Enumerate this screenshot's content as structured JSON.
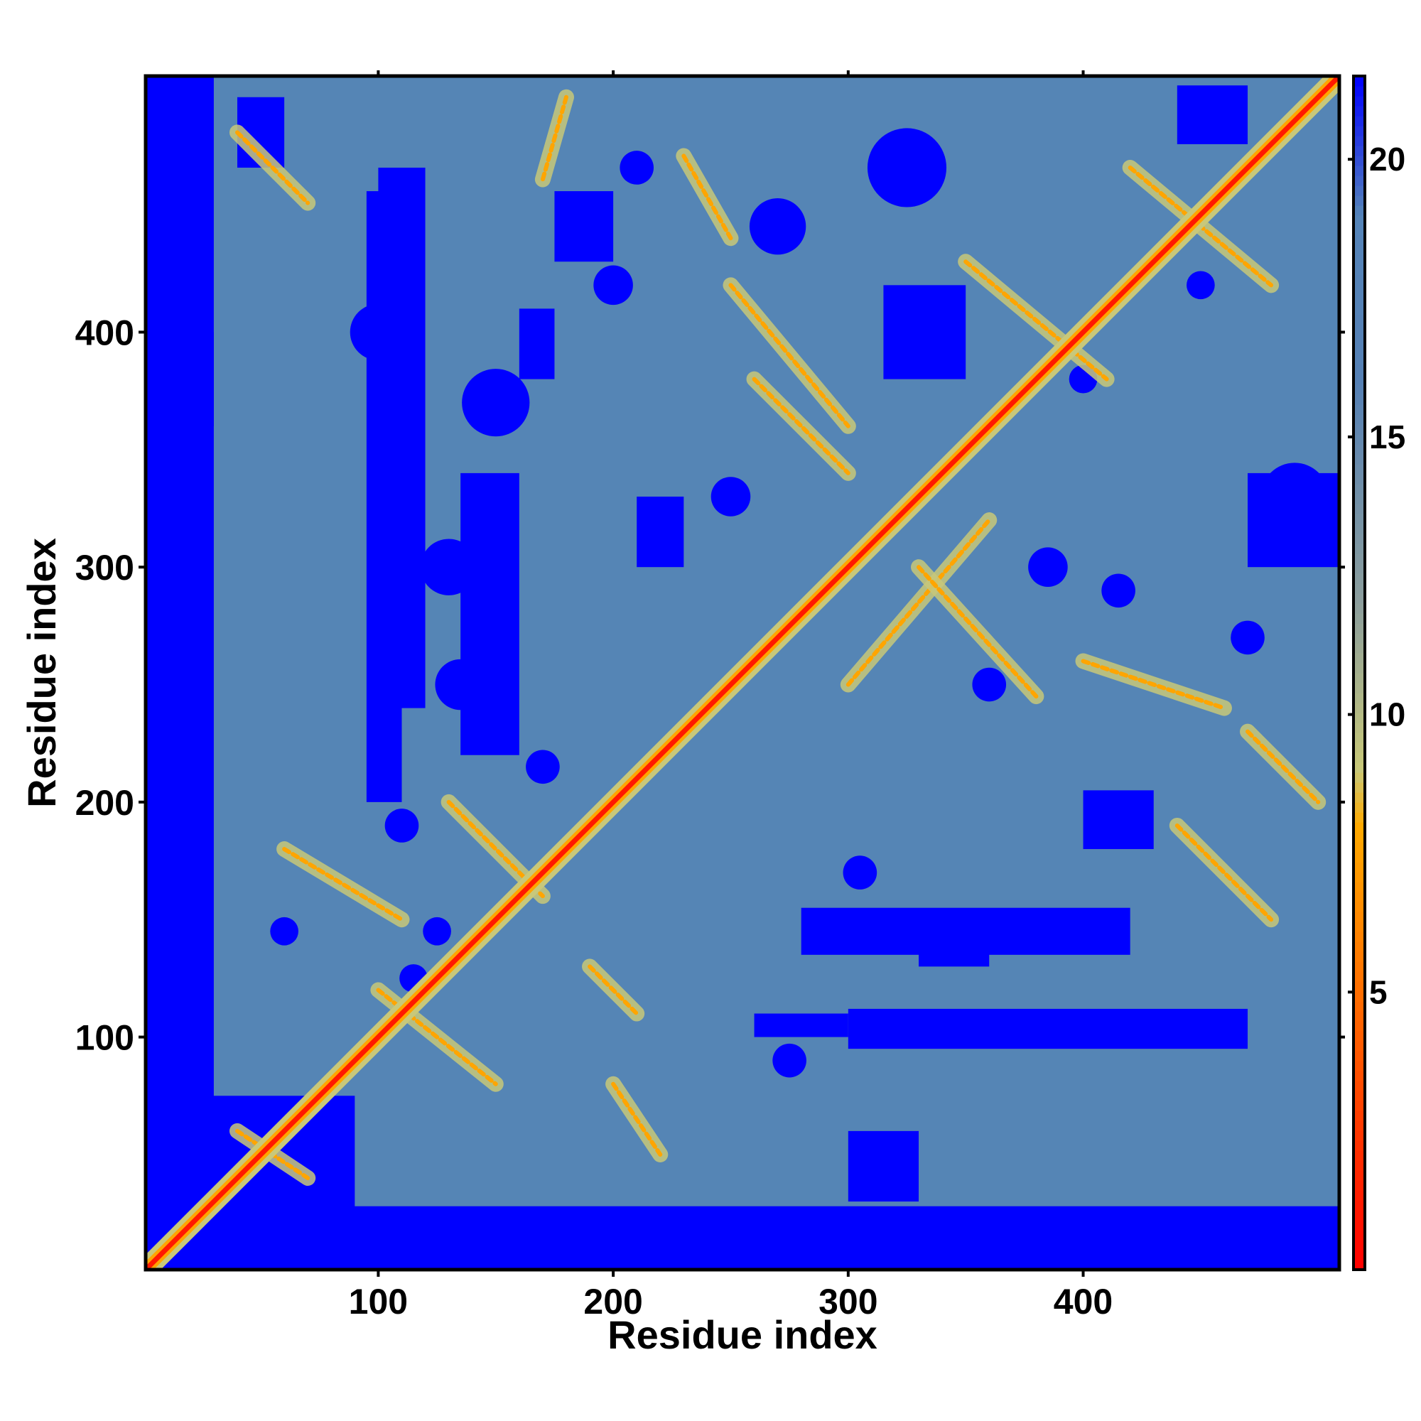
{
  "chart_data": {
    "type": "heatmap",
    "title": "",
    "xlabel": "Residue index",
    "ylabel": "Residue index",
    "xlim": [
      1,
      509
    ],
    "ylim": [
      1,
      509
    ],
    "x_ticks": [
      100,
      200,
      300,
      400
    ],
    "y_ticks": [
      100,
      200,
      300,
      400
    ],
    "colorbar": {
      "ticks": [
        5,
        10,
        15,
        20
      ],
      "range": [
        0,
        21.5
      ],
      "colors": [
        {
          "value": 0,
          "color": "#ff0000"
        },
        {
          "value": 4,
          "color": "#ff5a00"
        },
        {
          "value": 8,
          "color": "#ffaa00"
        },
        {
          "value": 9,
          "color": "#c8c878"
        },
        {
          "value": 12,
          "color": "#8c9e9c"
        },
        {
          "value": 16,
          "color": "#5580b4"
        },
        {
          "value": 19,
          "color": "#5584b8"
        },
        {
          "value": 21.5,
          "color": "#0000ff"
        }
      ]
    },
    "grid": false,
    "legend": "right colorbar",
    "colors": {
      "near": "#ff1a00",
      "contact": "#ffa500",
      "mid": "#c8c87a",
      "background": "#5585b5",
      "far": "#0000ff"
    }
  }
}
